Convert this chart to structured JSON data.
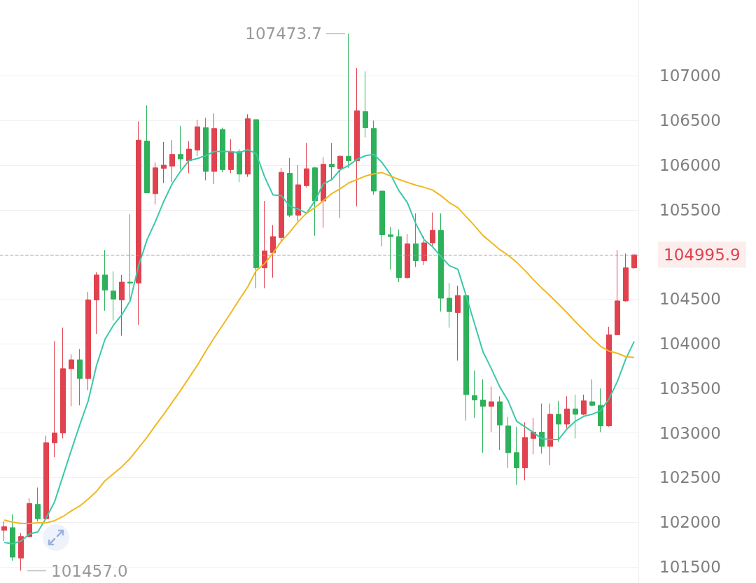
{
  "chart_data": {
    "type": "candlestick",
    "categories": [
      null,
      null,
      null,
      null,
      null,
      null,
      null,
      null,
      null,
      null,
      null,
      null,
      null,
      null,
      null,
      null,
      null,
      null,
      null,
      null,
      null,
      null,
      null,
      null,
      null,
      null,
      null,
      null,
      null,
      null,
      null,
      null,
      null,
      null,
      null,
      null,
      null,
      null,
      null,
      null,
      null,
      null,
      null,
      null,
      null,
      null,
      null,
      null,
      null,
      null,
      null,
      null,
      null,
      null,
      null,
      null,
      null,
      null,
      null,
      null,
      null,
      null,
      null,
      null,
      null,
      null,
      null,
      null,
      null,
      null,
      null,
      null,
      null,
      null,
      null,
      null
    ],
    "ohlc": [
      [
        101910,
        102010,
        101790,
        101950
      ],
      [
        101940,
        102090,
        101570,
        101610
      ],
      [
        101600,
        101880,
        101457,
        101840
      ],
      [
        101840,
        102270,
        101830,
        102210
      ],
      [
        102200,
        102390,
        102010,
        102040
      ],
      [
        102040,
        102970,
        102030,
        102890
      ],
      [
        102890,
        104030,
        102730,
        103000
      ],
      [
        103000,
        104180,
        102940,
        103720
      ],
      [
        103720,
        103880,
        103300,
        103820
      ],
      [
        103820,
        103940,
        103310,
        103610
      ],
      [
        103610,
        104580,
        103480,
        104490
      ],
      [
        104490,
        104800,
        104110,
        104770
      ],
      [
        104770,
        105050,
        104370,
        104600
      ],
      [
        104590,
        104810,
        104260,
        104500
      ],
      [
        104490,
        104770,
        104090,
        104690
      ],
      [
        104690,
        105450,
        104480,
        104680
      ],
      [
        104680,
        106490,
        104210,
        106280
      ],
      [
        106270,
        106670,
        105690,
        105690
      ],
      [
        105680,
        106030,
        105560,
        105970
      ],
      [
        105965,
        106260,
        105800,
        106000
      ],
      [
        105990,
        106280,
        105810,
        106120
      ],
      [
        106120,
        106440,
        105950,
        106070
      ],
      [
        106050,
        106270,
        105910,
        106180
      ],
      [
        106170,
        106510,
        106100,
        106430
      ],
      [
        106420,
        106530,
        105830,
        105930
      ],
      [
        105930,
        106580,
        105790,
        106410
      ],
      [
        106400,
        106420,
        105920,
        105950
      ],
      [
        105950,
        106290,
        105910,
        106150
      ],
      [
        106150,
        106180,
        105810,
        105900
      ],
      [
        105900,
        106570,
        105870,
        106520
      ],
      [
        106510,
        106510,
        104620,
        104850
      ],
      [
        104850,
        105600,
        104620,
        105040
      ],
      [
        105020,
        105330,
        104740,
        105200
      ],
      [
        105190,
        105970,
        105140,
        105920
      ],
      [
        105910,
        106080,
        105420,
        105440
      ],
      [
        105440,
        106000,
        105360,
        105780
      ],
      [
        105770,
        106250,
        105750,
        105960
      ],
      [
        105970,
        105980,
        105210,
        105600
      ],
      [
        105600,
        106090,
        105300,
        106010
      ],
      [
        106010,
        106250,
        105840,
        105980
      ],
      [
        105960,
        106110,
        105410,
        106100
      ],
      [
        106100,
        107473.7,
        105970,
        106050
      ],
      [
        106050,
        107090,
        105540,
        106610
      ],
      [
        106600,
        107050,
        106310,
        106420
      ],
      [
        106410,
        106500,
        105670,
        105710
      ],
      [
        105710,
        105710,
        105090,
        105220
      ],
      [
        105220,
        105310,
        104830,
        105200
      ],
      [
        105200,
        105280,
        104690,
        104740
      ],
      [
        104740,
        105230,
        104730,
        105120
      ],
      [
        105120,
        105460,
        104860,
        104930
      ],
      [
        104930,
        105200,
        104880,
        105130
      ],
      [
        105130,
        105470,
        105090,
        105270
      ],
      [
        105270,
        105460,
        104360,
        104510
      ],
      [
        104510,
        104680,
        104180,
        104360
      ],
      [
        104350,
        104650,
        103810,
        104540
      ],
      [
        104540,
        104540,
        103140,
        103430
      ],
      [
        103420,
        103700,
        103170,
        103370
      ],
      [
        103370,
        103600,
        102780,
        103300
      ],
      [
        103300,
        103520,
        103010,
        103350
      ],
      [
        103350,
        103410,
        102810,
        103090
      ],
      [
        103080,
        103180,
        102610,
        102780
      ],
      [
        102780,
        103070,
        102420,
        102610
      ],
      [
        102610,
        103120,
        102470,
        102950
      ],
      [
        102940,
        103170,
        102760,
        103010
      ],
      [
        103010,
        103330,
        102770,
        102850
      ],
      [
        102850,
        103330,
        102640,
        103210
      ],
      [
        103210,
        103360,
        102900,
        103100
      ],
      [
        103100,
        103410,
        103050,
        103270
      ],
      [
        103270,
        103430,
        102940,
        103210
      ],
      [
        103210,
        103430,
        103200,
        103360
      ],
      [
        103350,
        103600,
        103300,
        103310
      ],
      [
        103310,
        103500,
        103010,
        103080
      ],
      [
        103080,
        104190,
        103070,
        104100
      ],
      [
        104100,
        105050,
        104100,
        104480
      ],
      [
        104480,
        105010,
        104470,
        104850
      ],
      [
        104850,
        104995.9,
        104840,
        104995.9
      ]
    ],
    "colors": [
      "#e0424f",
      "#2eb15a",
      "#e0424f",
      "#e0424f",
      "#2eb15a",
      "#e0424f",
      "#e0424f",
      "#e0424f",
      "#e0424f",
      "#2eb15a",
      "#e0424f",
      "#e0424f",
      "#2eb15a",
      "#2eb15a",
      "#e0424f",
      "#2eb15a",
      "#e0424f",
      "#2eb15a",
      "#e0424f",
      "#e0424f",
      "#e0424f",
      "#2eb15a",
      "#e0424f",
      "#e0424f",
      "#2eb15a",
      "#e0424f",
      "#2eb15a",
      "#e0424f",
      "#2eb15a",
      "#e0424f",
      "#2eb15a",
      "#e0424f",
      "#e0424f",
      "#e0424f",
      "#2eb15a",
      "#e0424f",
      "#e0424f",
      "#2eb15a",
      "#e0424f",
      "#2eb15a",
      "#e0424f",
      "#2eb15a",
      "#e0424f",
      "#2eb15a",
      "#2eb15a",
      "#2eb15a",
      "#2eb15a",
      "#2eb15a",
      "#e0424f",
      "#2eb15a",
      "#e0424f",
      "#e0424f",
      "#2eb15a",
      "#2eb15a",
      "#e0424f",
      "#2eb15a",
      "#2eb15a",
      "#2eb15a",
      "#e0424f",
      "#2eb15a",
      "#2eb15a",
      "#2eb15a",
      "#e0424f",
      "#e0424f",
      "#2eb15a",
      "#e0424f",
      "#2eb15a",
      "#e0424f",
      "#2eb15a",
      "#e0424f",
      "#2eb15a",
      "#2eb15a",
      "#e0424f",
      "#e0424f",
      "#e0424f",
      "#e0424f"
    ],
    "series": [
      {
        "type": "line",
        "color": "#3cc8a8",
        "values": [
          101775,
          101759,
          101790,
          101869,
          101892,
          102049,
          102230,
          102520,
          102810,
          103093,
          103360,
          103760,
          104050,
          104207,
          104325,
          104481,
          104874,
          105164,
          105368,
          105596,
          105792,
          105933,
          106051,
          106074,
          106106,
          106153,
          106153,
          106153,
          106137,
          106176,
          106129,
          105870,
          105666,
          105658,
          105541,
          105509,
          105462,
          105603,
          105792,
          105839,
          105949,
          105996,
          106066,
          106106,
          106121,
          106027,
          105894,
          105713,
          105580,
          105345,
          105164,
          105086,
          104976,
          104874,
          104835,
          104536,
          104223,
          103909,
          103720,
          103516,
          103360,
          103132,
          103069,
          103006,
          102936,
          102928,
          102928,
          103046,
          103132,
          103187,
          103210,
          103250,
          103383,
          103579,
          103830,
          104026
        ]
      },
      {
        "type": "line",
        "color": "#f0b820",
        "values": [
          102026,
          102002,
          101986,
          101986,
          101994,
          101994,
          102018,
          102065,
          102128,
          102183,
          102261,
          102347,
          102465,
          102543,
          102622,
          102716,
          102834,
          102951,
          103085,
          103210,
          103344,
          103477,
          103618,
          103760,
          103917,
          104066,
          104207,
          104348,
          104497,
          104638,
          104819,
          104897,
          105015,
          105148,
          105250,
          105368,
          105462,
          105525,
          105603,
          105682,
          105737,
          105800,
          105839,
          105878,
          105902,
          105917,
          105878,
          105839,
          105807,
          105776,
          105752,
          105721,
          105658,
          105580,
          105525,
          105423,
          105321,
          105211,
          105133,
          105054,
          104991,
          104913,
          104819,
          104717,
          104623,
          104536,
          104442,
          104348,
          104246,
          104152,
          104058,
          103971,
          103917,
          103893,
          103854,
          103846
        ]
      }
    ],
    "ylim": [
      101320,
      107850
    ],
    "yticks": [
      101500,
      102000,
      102500,
      103000,
      103500,
      104000,
      104500,
      105500,
      106000,
      106500,
      107000
    ],
    "ref_lines": [
      {
        "axis": "y",
        "value": 104995.9,
        "label": "104995.9",
        "color": "#9a9a9a",
        "line_style": "dashed"
      }
    ],
    "annotations": [
      "107473.7",
      "101457.0"
    ],
    "grid": "y",
    "marker": "none",
    "tick_labels": "y"
  }
}
